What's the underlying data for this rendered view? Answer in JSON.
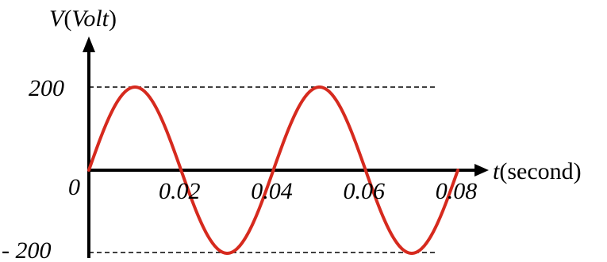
{
  "chart_data": {
    "type": "line",
    "ylabel_symbol": "V",
    "ylabel_unit": "Volt",
    "xlabel_symbol": "t",
    "xlabel_unit": "second",
    "x_ticks": [
      "0.02",
      "0.04",
      "0.06",
      "0.08"
    ],
    "y_ticks": [
      "200",
      "0",
      "- 200"
    ],
    "origin_label": "0",
    "xlim": [
      0,
      0.08
    ],
    "ylim": [
      -200,
      200
    ],
    "series": [
      {
        "amplitude": 200,
        "period": 0.04,
        "x": [
          0,
          0.005,
          0.01,
          0.015,
          0.02,
          0.025,
          0.03,
          0.035,
          0.04,
          0.045,
          0.05,
          0.055,
          0.06,
          0.065,
          0.07,
          0.075,
          0.08
        ],
        "y": [
          0,
          141,
          200,
          141,
          0,
          -141,
          -200,
          -141,
          0,
          141,
          200,
          141,
          0,
          -141,
          -200,
          -141,
          0
        ],
        "color": "#d62a1e"
      }
    ],
    "reference_lines": [
      200,
      -200
    ],
    "grid": false
  }
}
